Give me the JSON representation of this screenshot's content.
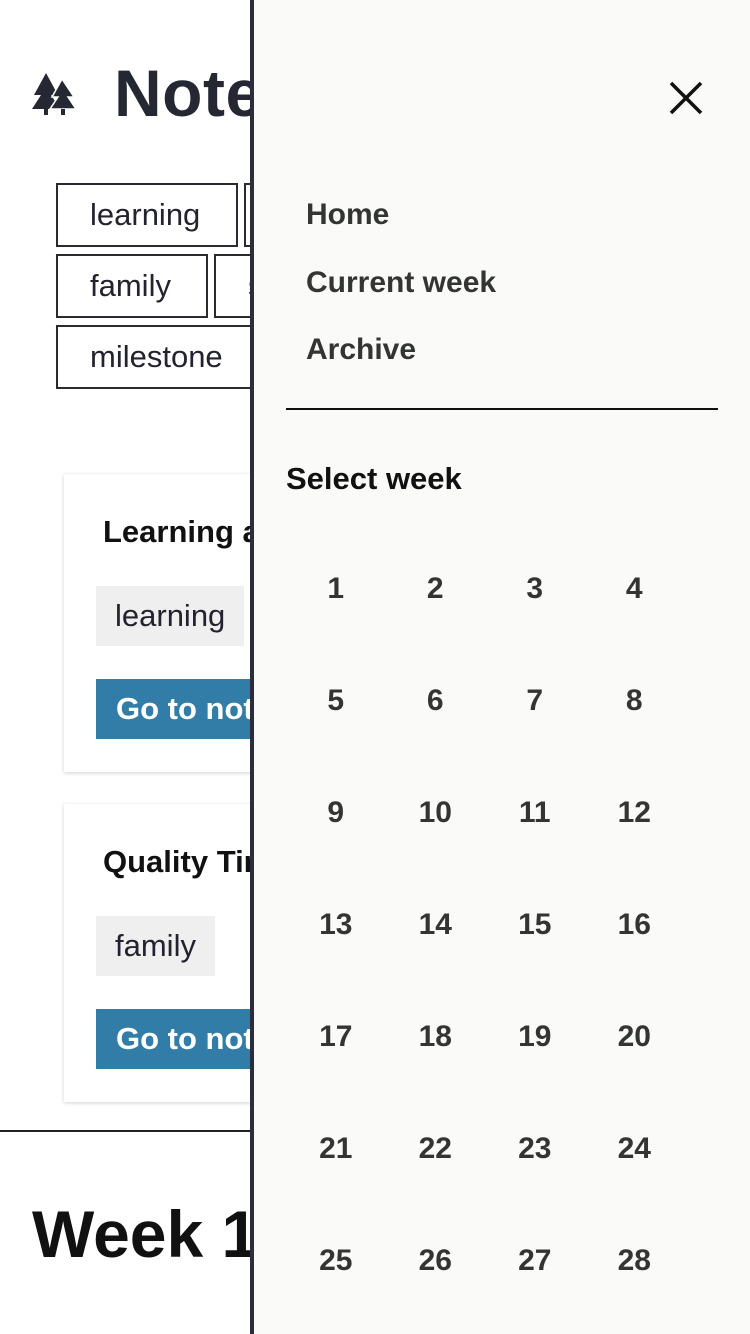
{
  "header": {
    "title": "Notes",
    "logo_icon": "trees-icon"
  },
  "tag_filters": [
    "learning",
    "",
    "family",
    "s",
    "milestone"
  ],
  "notes": [
    {
      "title": "Learning a",
      "tag": "learning",
      "button_label": "Go to note"
    },
    {
      "title": "Quality Time",
      "tag": "family",
      "button_label": "Go to note"
    }
  ],
  "week_heading": "Week 1",
  "drawer": {
    "close_icon": "close-icon",
    "nav": [
      "Home",
      "Current week",
      "Archive"
    ],
    "select_week_label": "Select week",
    "weeks": [
      "1",
      "2",
      "3",
      "4",
      "5",
      "6",
      "7",
      "8",
      "9",
      "10",
      "11",
      "12",
      "13",
      "14",
      "15",
      "16",
      "17",
      "18",
      "19",
      "20",
      "21",
      "22",
      "23",
      "24",
      "25",
      "26",
      "27",
      "28"
    ]
  },
  "colors": {
    "button": "#317da8",
    "drawer_bg": "#fafaf8",
    "tag_bg": "#efefef"
  }
}
